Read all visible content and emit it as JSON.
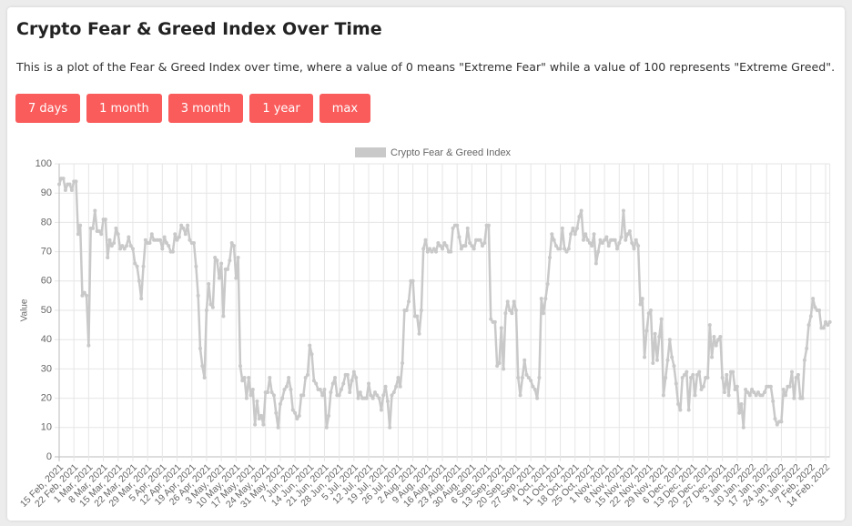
{
  "header": {
    "title": "Crypto Fear & Greed Index Over Time",
    "description": "This is a plot of the Fear & Greed Index over time, where a value of 0 means \"Extreme Fear\" while a value of 100 represents \"Extreme Greed\"."
  },
  "buttons": [
    "7 days",
    "1 month",
    "3 month",
    "1 year",
    "max"
  ],
  "chart_data": {
    "type": "line",
    "y_label": "Value",
    "color": "#c9c9c9",
    "grid": true,
    "legend": "top",
    "series": [
      {
        "name": "Crypto Fear & Greed Index",
        "color": "#c9c9c9",
        "values": [
          93,
          95,
          95,
          91,
          93,
          93,
          91,
          94,
          94,
          76,
          79,
          55,
          56,
          55,
          38,
          78,
          78,
          84,
          77,
          77,
          76,
          81,
          81,
          68,
          74,
          72,
          73,
          78,
          76,
          71,
          72,
          71,
          72,
          75,
          72,
          71,
          66,
          65,
          60,
          54,
          65,
          74,
          73,
          73,
          76,
          74,
          74,
          74,
          74,
          71,
          75,
          73,
          72,
          70,
          70,
          76,
          74,
          75,
          79,
          78,
          76,
          79,
          74,
          73,
          73,
          65,
          55,
          37,
          31,
          27,
          50,
          59,
          52,
          51,
          68,
          67,
          61,
          66,
          48,
          64,
          64,
          67,
          73,
          72,
          61,
          68,
          31,
          26,
          27,
          20,
          27,
          21,
          23,
          11,
          19,
          13,
          14,
          11,
          22,
          22,
          27,
          22,
          21,
          15,
          10,
          18,
          20,
          23,
          24,
          27,
          23,
          16,
          15,
          13,
          14,
          21,
          21,
          27,
          28,
          38,
          35,
          26,
          25,
          23,
          23,
          21,
          23,
          10,
          14,
          22,
          25,
          27,
          21,
          21,
          23,
          25,
          28,
          28,
          22,
          26,
          29,
          27,
          20,
          22,
          20,
          20,
          20,
          25,
          21,
          20,
          22,
          21,
          20,
          16,
          21,
          24,
          19,
          10,
          21,
          22,
          24,
          27,
          24,
          32,
          50,
          50,
          53,
          60,
          60,
          48,
          48,
          42,
          50,
          71,
          74,
          70,
          71,
          70,
          71,
          70,
          73,
          72,
          71,
          73,
          72,
          70,
          70,
          78,
          79,
          79,
          75,
          71,
          72,
          72,
          78,
          73,
          72,
          71,
          74,
          74,
          74,
          72,
          73,
          79,
          79,
          47,
          46,
          46,
          31,
          32,
          44,
          30,
          49,
          53,
          50,
          49,
          53,
          50,
          27,
          21,
          27,
          33,
          28,
          27,
          26,
          24,
          23,
          20,
          27,
          54,
          49,
          54,
          59,
          68,
          76,
          74,
          72,
          71,
          71,
          78,
          71,
          70,
          71,
          76,
          78,
          76,
          78,
          82,
          84,
          74,
          76,
          74,
          73,
          72,
          76,
          66,
          70,
          74,
          73,
          74,
          75,
          72,
          74,
          74,
          74,
          71,
          73,
          75,
          84,
          74,
          76,
          77,
          73,
          71,
          74,
          72,
          52,
          54,
          34,
          43,
          49,
          50,
          32,
          42,
          33,
          41,
          47,
          21,
          27,
          33,
          40,
          34,
          31,
          25,
          18,
          16,
          27,
          28,
          29,
          16,
          27,
          28,
          21,
          28,
          29,
          23,
          24,
          27,
          27,
          45,
          34,
          41,
          38,
          40,
          41,
          27,
          22,
          28,
          21,
          29,
          29,
          23,
          24,
          15,
          18,
          10,
          23,
          22,
          21,
          23,
          22,
          21,
          22,
          21,
          21,
          22,
          24,
          24,
          24,
          19,
          13,
          11,
          12,
          12,
          23,
          21,
          24,
          24,
          29,
          20,
          27,
          28,
          20,
          20,
          33,
          37,
          45,
          48,
          54,
          51,
          50,
          50,
          44,
          44,
          46,
          45,
          46
        ]
      }
    ],
    "categories": [
      "15 Feb, 2021",
      null,
      null,
      null,
      null,
      null,
      null,
      "22 Feb, 2021",
      null,
      null,
      null,
      null,
      null,
      null,
      "1 Mar, 2021",
      null,
      null,
      null,
      null,
      null,
      null,
      "8 Mar, 2021",
      null,
      null,
      null,
      null,
      null,
      null,
      "15 Mar, 2021",
      null,
      null,
      null,
      null,
      null,
      null,
      "22 Mar, 2021",
      null,
      null,
      null,
      null,
      null,
      null,
      "29 Mar, 2021",
      null,
      null,
      null,
      null,
      null,
      null,
      "5 Apr, 2021",
      null,
      null,
      null,
      null,
      null,
      null,
      "12 Apr, 2021",
      null,
      null,
      null,
      null,
      null,
      null,
      "19 Apr, 2021",
      null,
      null,
      null,
      null,
      null,
      null,
      "26 Apr, 2021",
      null,
      null,
      null,
      null,
      null,
      null,
      "3 May, 2021",
      null,
      null,
      null,
      null,
      null,
      null,
      "10 May, 2021",
      null,
      null,
      null,
      null,
      null,
      null,
      "17 May, 2021",
      null,
      null,
      null,
      null,
      null,
      null,
      "24 May, 2021",
      null,
      null,
      null,
      null,
      null,
      null,
      "31 May, 2021",
      null,
      null,
      null,
      null,
      null,
      null,
      "7 Jun, 2021",
      null,
      null,
      null,
      null,
      null,
      null,
      "14 Jun, 2021",
      null,
      null,
      null,
      null,
      null,
      null,
      "21 Jun, 2021",
      null,
      null,
      null,
      null,
      null,
      null,
      "28 Jun, 2021",
      null,
      null,
      null,
      null,
      null,
      null,
      "5 Jul, 2021",
      null,
      null,
      null,
      null,
      null,
      null,
      "12 Jul, 2021",
      null,
      null,
      null,
      null,
      null,
      null,
      "19 Jul, 2021",
      null,
      null,
      null,
      null,
      null,
      null,
      "26 Jul, 2021",
      null,
      null,
      null,
      null,
      null,
      null,
      "2 Aug, 2021",
      null,
      null,
      null,
      null,
      null,
      null,
      "9 Aug, 2021",
      null,
      null,
      null,
      null,
      null,
      null,
      "16 Aug, 2021",
      null,
      null,
      null,
      null,
      null,
      null,
      "23 Aug, 2021",
      null,
      null,
      null,
      null,
      null,
      null,
      "30 Aug, 2021",
      null,
      null,
      null,
      null,
      null,
      null,
      "6 Sep, 2021",
      null,
      null,
      null,
      null,
      null,
      null,
      "13 Sep, 2021",
      null,
      null,
      null,
      null,
      null,
      null,
      "20 Sep, 2021",
      null,
      null,
      null,
      null,
      null,
      null,
      "27 Sep, 2021",
      null,
      null,
      null,
      null,
      null,
      null,
      "4 Oct, 2021",
      null,
      null,
      null,
      null,
      null,
      null,
      "11 Oct, 2021",
      null,
      null,
      null,
      null,
      null,
      null,
      "18 Oct, 2021",
      null,
      null,
      null,
      null,
      null,
      null,
      "25 Oct, 2021",
      null,
      null,
      null,
      null,
      null,
      null,
      "1 Nov, 2021",
      null,
      null,
      null,
      null,
      null,
      null,
      "8 Nov, 2021",
      null,
      null,
      null,
      null,
      null,
      null,
      "15 Nov, 2021",
      null,
      null,
      null,
      null,
      null,
      null,
      "22 Nov, 2021",
      null,
      null,
      null,
      null,
      null,
      null,
      "29 Nov, 2021",
      null,
      null,
      null,
      null,
      null,
      null,
      "6 Dec, 2021",
      null,
      null,
      null,
      null,
      null,
      null,
      "13 Dec, 2021",
      null,
      null,
      null,
      null,
      null,
      null,
      "20 Dec, 2021",
      null,
      null,
      null,
      null,
      null,
      null,
      "27 Dec, 2021",
      null,
      null,
      null,
      null,
      null,
      null,
      "3 Jan, 2022",
      null,
      null,
      null,
      null,
      null,
      null,
      "10 Jan, 2022",
      null,
      null,
      null,
      null,
      null,
      null,
      "17 Jan, 2022",
      null,
      null,
      null,
      null,
      null,
      null,
      "24 Jan, 2022",
      null,
      null,
      null,
      null,
      null,
      null,
      "31 Jan, 2022",
      null,
      null,
      null,
      null,
      null,
      null,
      "7 Feb, 2022",
      null,
      null,
      null,
      null,
      null,
      null,
      "14 Feb, 2022",
      null,
      null
    ],
    "ylim": [
      0,
      100
    ],
    "yticks": [
      0,
      10,
      20,
      30,
      40,
      50,
      60,
      70,
      80,
      90,
      100
    ]
  }
}
